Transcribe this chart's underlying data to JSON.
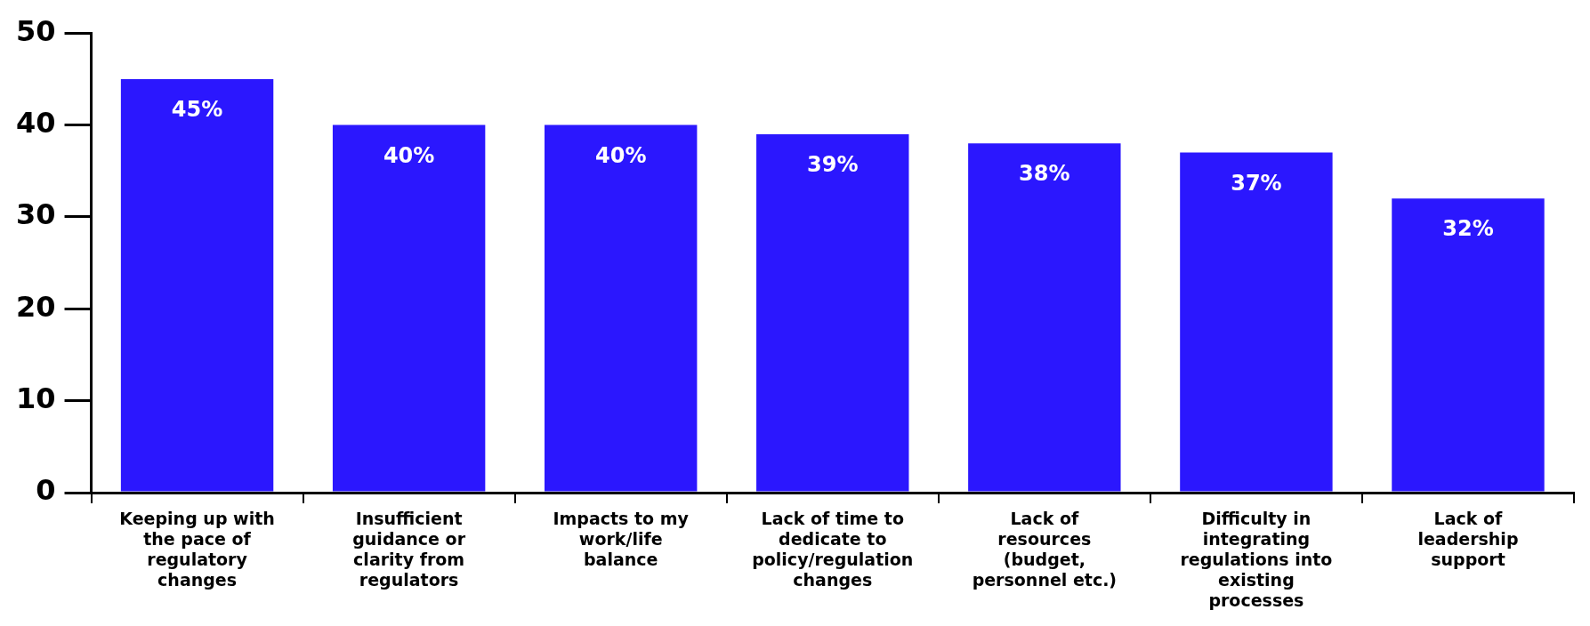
{
  "chart_data": {
    "type": "bar",
    "categories": [
      "Keeping up with the pace of regulatory changes",
      "Insufficient guidance or clarity from regulators",
      "Impacts to my work/life balance",
      "Lack of time to dedicate to policy/regulation changes",
      "Lack of resources (budget, personnel etc.)",
      "Difficulty in integrating regulations into existing processes",
      "Lack of leadership support"
    ],
    "values": [
      45,
      40,
      40,
      39,
      38,
      37,
      32
    ],
    "value_labels": [
      "45%",
      "40%",
      "40%",
      "39%",
      "38%",
      "37%",
      "32%"
    ],
    "color": "#2b17fe",
    "ylim": [
      0,
      50
    ],
    "yticks": [
      0,
      10,
      20,
      30,
      40,
      50
    ],
    "grid": false,
    "legend": false
  }
}
